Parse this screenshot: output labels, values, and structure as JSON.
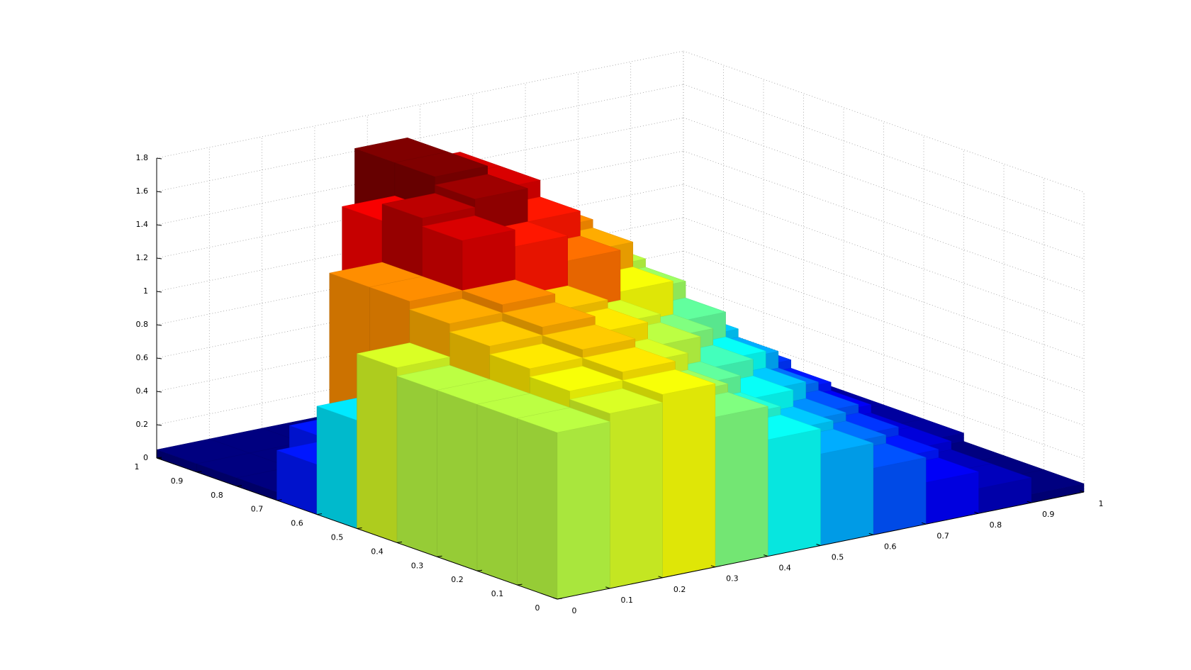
{
  "chart_data": {
    "type": "surface",
    "colormap": "jet",
    "grid": true,
    "x": [
      0,
      0.1,
      0.2,
      0.3,
      0.4,
      0.5,
      0.6,
      0.7,
      0.8,
      0.9
    ],
    "y": [
      0,
      0.1,
      0.2,
      0.3,
      0.4,
      0.5,
      0.6,
      0.7,
      0.8,
      0.9
    ],
    "z": [
      [
        1.0,
        1.05,
        1.1,
        0.9,
        0.7,
        0.55,
        0.4,
        0.25,
        0.15,
        0.05
      ],
      [
        1.0,
        1.1,
        1.15,
        0.95,
        0.75,
        0.6,
        0.45,
        0.3,
        0.15,
        0.05
      ],
      [
        1.0,
        1.15,
        1.2,
        1.05,
        0.85,
        0.7,
        0.5,
        0.35,
        0.2,
        0.05
      ],
      [
        1.0,
        1.2,
        1.25,
        1.15,
        1.0,
        0.8,
        0.6,
        0.4,
        0.2,
        0.1
      ],
      [
        1.05,
        1.25,
        1.3,
        1.2,
        1.05,
        0.9,
        0.7,
        0.45,
        0.25,
        0.1
      ],
      [
        0.65,
        1.3,
        1.6,
        1.5,
        1.35,
        1.1,
        0.85,
        0.55,
        0.3,
        0.1
      ],
      [
        0.3,
        1.3,
        1.65,
        1.7,
        1.5,
        1.25,
        0.95,
        0.6,
        0.35,
        0.1
      ],
      [
        0.05,
        0.3,
        1.55,
        1.75,
        1.6,
        1.3,
        1.0,
        0.65,
        0.35,
        0.1
      ],
      [
        0.05,
        0.05,
        0.05,
        1.75,
        1.6,
        1.3,
        0.9,
        0.55,
        0.3,
        0.05
      ],
      [
        0.05,
        0.05,
        0.05,
        0.05,
        0.05,
        0.05,
        0.05,
        0.05,
        0.05,
        0.05
      ]
    ],
    "xlim": [
      0,
      1
    ],
    "xticks": [
      0,
      0.1,
      0.2,
      0.3,
      0.4,
      0.5,
      0.6,
      0.7,
      0.8,
      0.9,
      1
    ],
    "ylim": [
      0,
      1
    ],
    "yticks": [
      0,
      0.1,
      0.2,
      0.3,
      0.4,
      0.5,
      0.6,
      0.7,
      0.8,
      0.9,
      1
    ],
    "zlim": [
      0,
      1.8
    ],
    "zticks": [
      0,
      0.2,
      0.4,
      0.6,
      0.8,
      1,
      1.2,
      1.4,
      1.6,
      1.8
    ]
  }
}
